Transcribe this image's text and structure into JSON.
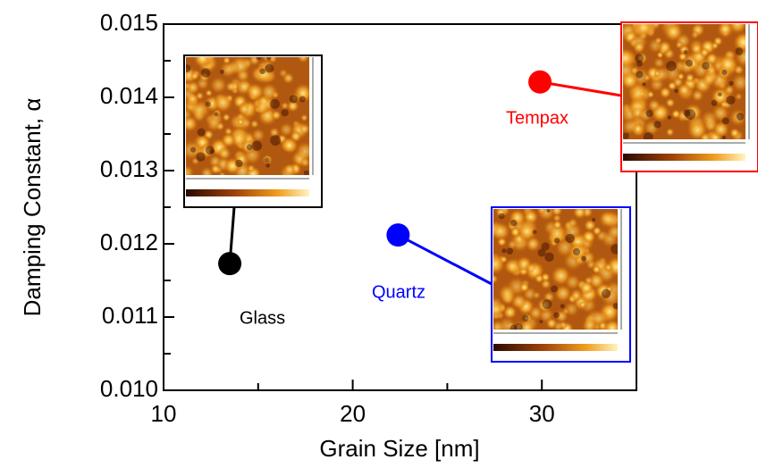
{
  "chart_data": {
    "type": "scatter",
    "xlabel": "Grain Size [nm]",
    "ylabel": "Damping Constant, α",
    "xlim": [
      10,
      35
    ],
    "xticks": [
      10,
      20,
      30
    ],
    "xminor_ticks": [
      15,
      25
    ],
    "ylim": [
      0.01,
      0.015
    ],
    "yticks": [
      {
        "value": 0.01,
        "label": "0.010"
      },
      0.011,
      0.012,
      0.013,
      0.014,
      0.015
    ],
    "yminor_ticks": [
      0.0105,
      0.0115,
      0.0125,
      0.0135,
      0.0145
    ],
    "series": [
      {
        "name": "Glass",
        "color": "#000000",
        "x": [
          13.5
        ],
        "values": [
          0.01173
        ]
      },
      {
        "name": "Quartz",
        "color": "#0000ff",
        "x": [
          22.4
        ],
        "values": [
          0.01212
        ]
      },
      {
        "name": "Tempax",
        "color": "#ff0000",
        "x": [
          29.9
        ],
        "values": [
          0.01421
        ]
      }
    ]
  }
}
